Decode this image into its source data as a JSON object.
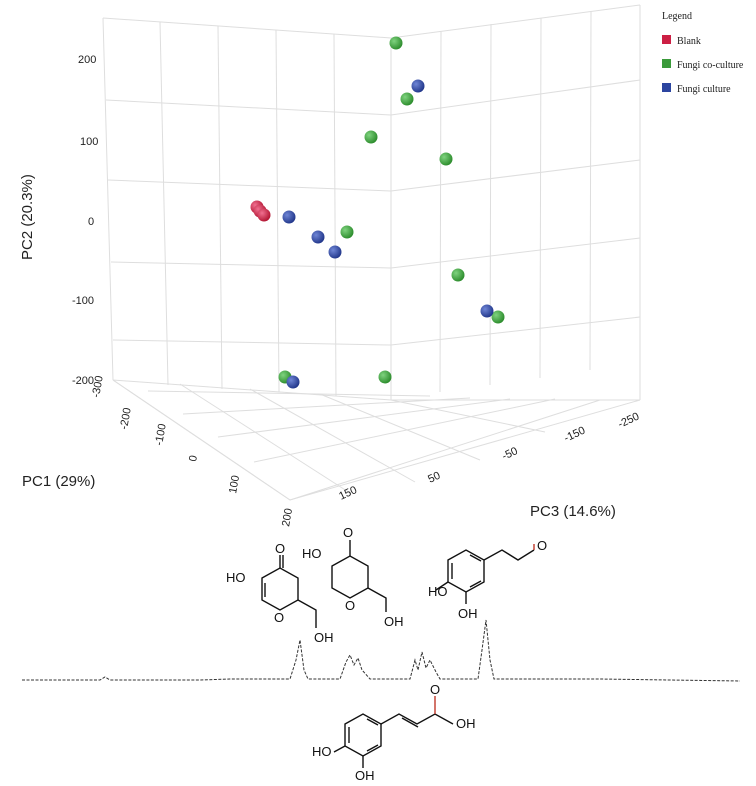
{
  "chart_data": {
    "type": "scatter",
    "projection": "3d",
    "axes": {
      "x": {
        "label": "PC1 (29%)",
        "ticks": [
          "-300",
          "-200",
          "-100",
          "0",
          "100",
          "200"
        ]
      },
      "y": {
        "label": "PC2 (20.3%)",
        "ticks": [
          "200",
          "100",
          "0",
          "-100",
          "-200"
        ]
      },
      "z": {
        "label": "PC3 (14.6%)",
        "ticks": [
          "150",
          "50",
          "-50",
          "-150",
          "-250"
        ]
      }
    },
    "legend": {
      "title": "Legend",
      "position": "top-right",
      "entries": [
        {
          "label": "Blank",
          "color": "#cc1f44"
        },
        {
          "label": "Fungi co-culture",
          "color": "#3a9a3a"
        },
        {
          "label": "Fungi culture",
          "color": "#2c45a0"
        }
      ]
    },
    "series": [
      {
        "name": "Blank",
        "color": "#cc1f44",
        "points": [
          {
            "pc2": 15
          },
          {
            "pc2": 10
          },
          {
            "pc2": 8
          }
        ]
      },
      {
        "name": "Fungi co-culture",
        "color": "#3a9a3a",
        "points": [
          {
            "pc2": 225
          },
          {
            "pc2": 150
          },
          {
            "pc2": 100
          },
          {
            "pc2": 75
          },
          {
            "pc2": -15
          },
          {
            "pc2": -70
          },
          {
            "pc2": -120
          },
          {
            "pc2": -205
          },
          {
            "pc2": -205
          }
        ]
      },
      {
        "name": "Fungi culture",
        "color": "#2c45a0",
        "points": [
          {
            "pc2": 165
          },
          {
            "pc2": 2
          },
          {
            "pc2": -20
          },
          {
            "pc2": -40
          },
          {
            "pc2": -110
          },
          {
            "pc2": -210
          }
        ]
      }
    ],
    "grid": true
  },
  "chemistry": {
    "labels": [
      "HO",
      "O",
      "O",
      "OH",
      "HO",
      "O",
      "O",
      "OH",
      "O",
      "HO",
      "OH",
      "O",
      "OH",
      "HO",
      "OH"
    ]
  }
}
